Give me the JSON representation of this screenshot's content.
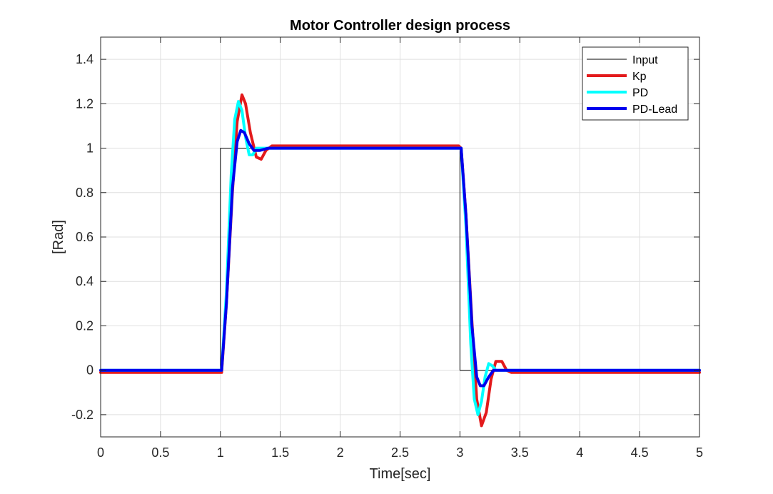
{
  "chart_data": {
    "type": "line",
    "title": "Motor Controller design process",
    "xlabel": "Time[sec]",
    "ylabel": "[Rad]",
    "xlim": [
      0,
      5
    ],
    "ylim": [
      -0.3,
      1.5
    ],
    "xticks": [
      0,
      0.5,
      1,
      1.5,
      2,
      2.5,
      3,
      3.5,
      4,
      4.5,
      5
    ],
    "xtick_labels": [
      "0",
      "0.5",
      "1",
      "1.5",
      "2",
      "2.5",
      "3",
      "3.5",
      "4",
      "4.5",
      "5"
    ],
    "yticks": [
      -0.2,
      0,
      0.2,
      0.4,
      0.6,
      0.8,
      1,
      1.2,
      1.4
    ],
    "ytick_labels": [
      "-0.2",
      "0",
      "0.2",
      "0.4",
      "0.6",
      "0.8",
      "1",
      "1.2",
      "1.4"
    ],
    "grid": true,
    "legend_position": "top-right",
    "series": [
      {
        "name": "Input",
        "color": "#000000",
        "line_width": "thin",
        "x": [
          0,
          1,
          1,
          3,
          3,
          5,
          5
        ],
        "y": [
          0,
          0,
          1,
          1,
          0,
          0,
          1
        ]
      },
      {
        "name": "Kp",
        "color": "#e31a1c",
        "line_width": "thick",
        "x": [
          0,
          0.99,
          1.01,
          1.05,
          1.1,
          1.14,
          1.18,
          1.21,
          1.25,
          1.3,
          1.34,
          1.38,
          1.43,
          1.5,
          2.0,
          2.5,
          2.99,
          3.01,
          3.05,
          3.1,
          3.14,
          3.18,
          3.22,
          3.26,
          3.3,
          3.35,
          3.39,
          3.43,
          3.5,
          4.0,
          4.5,
          5.0
        ],
        "y": [
          -0.01,
          -0.01,
          -0.01,
          0.3,
          0.8,
          1.12,
          1.24,
          1.2,
          1.07,
          0.96,
          0.95,
          0.99,
          1.01,
          1.01,
          1.01,
          1.01,
          1.01,
          1.0,
          0.7,
          0.22,
          -0.13,
          -0.25,
          -0.19,
          -0.04,
          0.04,
          0.04,
          0.0,
          -0.01,
          -0.01,
          -0.01,
          -0.01,
          -0.01
        ]
      },
      {
        "name": "PD",
        "color": "#00ffff",
        "line_width": "thick",
        "x": [
          0,
          0.99,
          1.01,
          1.05,
          1.09,
          1.12,
          1.15,
          1.18,
          1.21,
          1.24,
          1.27,
          1.3,
          1.35,
          1.4,
          2.0,
          2.5,
          2.99,
          3.01,
          3.05,
          3.09,
          3.12,
          3.15,
          3.18,
          3.21,
          3.24,
          3.27,
          3.3,
          3.35,
          3.4,
          4.0,
          4.5,
          5.0
        ],
        "y": [
          0,
          0,
          0,
          0.35,
          0.88,
          1.13,
          1.21,
          1.17,
          1.05,
          0.97,
          0.97,
          1.0,
          1.0,
          1.0,
          1.0,
          1.0,
          1.0,
          1.0,
          0.65,
          0.12,
          -0.13,
          -0.2,
          -0.14,
          -0.03,
          0.03,
          0.02,
          0.0,
          0.0,
          0.0,
          0.0,
          0.0,
          0.0
        ]
      },
      {
        "name": "PD-Lead",
        "color": "#0000ee",
        "line_width": "thick",
        "x": [
          0,
          0.99,
          1.01,
          1.05,
          1.1,
          1.14,
          1.17,
          1.2,
          1.24,
          1.28,
          1.33,
          1.4,
          2.0,
          2.5,
          2.99,
          3.01,
          3.05,
          3.1,
          3.14,
          3.17,
          3.2,
          3.24,
          3.28,
          3.33,
          3.4,
          4.0,
          4.5,
          5.0
        ],
        "y": [
          0,
          0,
          0,
          0.3,
          0.82,
          1.03,
          1.08,
          1.07,
          1.02,
          0.99,
          0.99,
          1.0,
          1.0,
          1.0,
          1.0,
          1.0,
          0.7,
          0.2,
          -0.03,
          -0.07,
          -0.07,
          -0.03,
          0.0,
          0.0,
          0.0,
          0.0,
          0.0,
          0.0
        ]
      }
    ]
  }
}
